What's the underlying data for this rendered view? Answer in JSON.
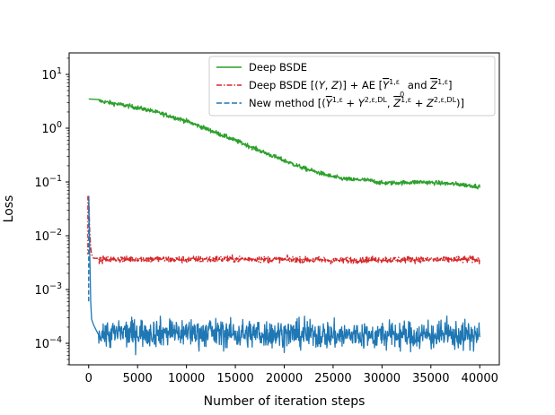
{
  "chart_data": {
    "type": "line",
    "title": "",
    "xlabel": "Number of iteration steps",
    "ylabel": "Loss",
    "xlim": [
      -2000,
      42000
    ],
    "ylim_log10": [
      -4.4,
      1.4
    ],
    "y_scale": "log",
    "x_ticks": [
      0,
      5000,
      10000,
      15000,
      20000,
      25000,
      30000,
      35000,
      40000
    ],
    "x_tick_labels": [
      "0",
      "5000",
      "10000",
      "15000",
      "20000",
      "25000",
      "30000",
      "35000",
      "40000"
    ],
    "y_ticks": [
      {
        "base": "10",
        "exp": "1",
        "value": 10
      },
      {
        "base": "10",
        "exp": "0",
        "value": 1
      },
      {
        "base": "10",
        "exp": "−1",
        "value": 0.1
      },
      {
        "base": "10",
        "exp": "−2",
        "value": 0.01
      },
      {
        "base": "10",
        "exp": "−3",
        "value": 0.001
      },
      {
        "base": "10",
        "exp": "−4",
        "value": 0.0001
      }
    ],
    "legend_position": "top-right",
    "series": [
      {
        "name": "Deep BSDE",
        "color": "#2ca02c",
        "style": "solid",
        "noise_amplitude_log10": 0.02,
        "x": [
          0,
          1000,
          2000,
          4000,
          6000,
          8000,
          10000,
          12000,
          14000,
          16000,
          18000,
          20000,
          22000,
          24000,
          25000,
          26000,
          27000,
          28000,
          29000,
          30000,
          32000,
          34000,
          36000,
          38000,
          40000
        ],
        "values": [
          3.5,
          3.25,
          3.0,
          2.6,
          2.2,
          1.75,
          1.35,
          0.98,
          0.7,
          0.5,
          0.35,
          0.25,
          0.18,
          0.14,
          0.125,
          0.115,
          0.11,
          0.11,
          0.105,
          0.095,
          0.097,
          0.1,
          0.095,
          0.09,
          0.082
        ]
      },
      {
        "name": "Deep BSDE [(Y, Z)] + AE [Ȳ₀^{1,ε} and Z̄^{1,ε}]",
        "color": "#d62728",
        "style": "dashdot",
        "noise_amplitude_log10": 0.03,
        "x": [
          0,
          100,
          200,
          300,
          500,
          1000,
          5000,
          10000,
          15000,
          20000,
          25000,
          30000,
          35000,
          40000
        ],
        "values": [
          0.055,
          0.012,
          0.006,
          0.0045,
          0.0038,
          0.0036,
          0.0037,
          0.0036,
          0.0037,
          0.0036,
          0.0035,
          0.0036,
          0.0036,
          0.0036
        ]
      },
      {
        "name": "New method [(Ȳ^{1,ε} + Y^{2,ε,DL}, Z̄^{1,ε} + Z^{2,ε,DL})]",
        "color": "#1f77b4",
        "style": "dashed",
        "noise_amplitude_log10": 0.13,
        "x": [
          0,
          100,
          200,
          300,
          500,
          800,
          1200,
          2000,
          5000,
          10000,
          15000,
          20000,
          25000,
          30000,
          35000,
          40000
        ],
        "values": [
          0.055,
          0.005,
          0.0006,
          0.00028,
          0.00022,
          0.00017,
          0.00015,
          0.00015,
          0.00016,
          0.00016,
          0.00015,
          0.00015,
          0.00014,
          0.00014,
          0.00014,
          0.00014
        ]
      }
    ],
    "legend": {
      "entries": [
        {
          "parts": [
            {
              "t": "Deep BSDE"
            }
          ]
        },
        {
          "parts": [
            {
              "t": "Deep BSDE [("
            },
            {
              "t": "Y",
              "it": true
            },
            {
              "t": ", "
            },
            {
              "t": "Z",
              "it": true
            },
            {
              "t": ")] + AE ["
            },
            {
              "t": "Y",
              "it": true,
              "bar": true
            },
            {
              "t": "1,ε",
              "sup": true
            },
            {
              "t": "0",
              "sub": true
            },
            {
              "t": " and "
            },
            {
              "t": "Z",
              "it": true,
              "bar": true
            },
            {
              "t": "1,ε",
              "sup": true
            },
            {
              "t": "]"
            }
          ]
        },
        {
          "parts": [
            {
              "t": "New method [("
            },
            {
              "t": "Y",
              "it": true,
              "bar": true
            },
            {
              "t": "1,ε",
              "sup": true
            },
            {
              "t": " + "
            },
            {
              "t": "Y",
              "it": true
            },
            {
              "t": "2,ε,DL",
              "sup": true
            },
            {
              "t": ", "
            },
            {
              "t": "Z",
              "it": true,
              "bar": true
            },
            {
              "t": "1,ε",
              "sup": true
            },
            {
              "t": " + "
            },
            {
              "t": "Z",
              "it": true
            },
            {
              "t": "2,ε,DL",
              "sup": true
            },
            {
              "t": ")]"
            }
          ]
        }
      ]
    }
  }
}
